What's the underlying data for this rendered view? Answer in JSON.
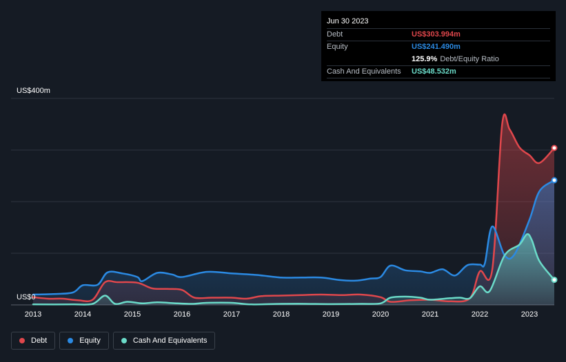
{
  "chart_data": {
    "type": "area",
    "y_top_label": "US$400m",
    "y_zero_label": "US$0",
    "ylim": [
      0,
      400
    ],
    "xlim": [
      2013.0,
      2023.5
    ],
    "x_ticks": [
      "2013",
      "2014",
      "2015",
      "2016",
      "2017",
      "2018",
      "2019",
      "2020",
      "2021",
      "2022",
      "2023"
    ],
    "series": [
      {
        "name": "Debt",
        "color": "#e0474c",
        "points": [
          [
            2013.0,
            15
          ],
          [
            2013.3,
            12
          ],
          [
            2013.6,
            12
          ],
          [
            2013.9,
            9
          ],
          [
            2014.2,
            10
          ],
          [
            2014.45,
            44
          ],
          [
            2014.7,
            44
          ],
          [
            2015.1,
            43
          ],
          [
            2015.4,
            32
          ],
          [
            2015.7,
            31
          ],
          [
            2016.0,
            29
          ],
          [
            2016.25,
            14
          ],
          [
            2016.6,
            14
          ],
          [
            2017.0,
            14
          ],
          [
            2017.3,
            12
          ],
          [
            2017.6,
            17
          ],
          [
            2018.0,
            18
          ],
          [
            2018.4,
            19
          ],
          [
            2018.8,
            20
          ],
          [
            2019.2,
            19
          ],
          [
            2019.6,
            20
          ],
          [
            2020.0,
            15
          ],
          [
            2020.2,
            6
          ],
          [
            2020.6,
            9
          ],
          [
            2021.0,
            10
          ],
          [
            2021.4,
            7
          ],
          [
            2021.8,
            13
          ],
          [
            2022.0,
            65
          ],
          [
            2022.25,
            68
          ],
          [
            2022.45,
            350
          ],
          [
            2022.6,
            340
          ],
          [
            2022.8,
            305
          ],
          [
            2023.0,
            290
          ],
          [
            2023.2,
            275
          ],
          [
            2023.5,
            303.994
          ]
        ]
      },
      {
        "name": "Equity",
        "color": "#2b8ae3",
        "points": [
          [
            2013.0,
            20
          ],
          [
            2013.4,
            21
          ],
          [
            2013.8,
            24
          ],
          [
            2014.0,
            38
          ],
          [
            2014.3,
            39
          ],
          [
            2014.5,
            63
          ],
          [
            2014.8,
            61
          ],
          [
            2015.1,
            54
          ],
          [
            2015.2,
            46
          ],
          [
            2015.5,
            62
          ],
          [
            2015.8,
            59
          ],
          [
            2016.0,
            54
          ],
          [
            2016.5,
            64
          ],
          [
            2017.0,
            61
          ],
          [
            2017.5,
            58
          ],
          [
            2018.0,
            53
          ],
          [
            2018.4,
            53
          ],
          [
            2018.8,
            53
          ],
          [
            2019.2,
            48
          ],
          [
            2019.5,
            47
          ],
          [
            2019.8,
            51
          ],
          [
            2020.0,
            54
          ],
          [
            2020.2,
            76
          ],
          [
            2020.5,
            67
          ],
          [
            2020.8,
            65
          ],
          [
            2021.0,
            62
          ],
          [
            2021.25,
            69
          ],
          [
            2021.5,
            57
          ],
          [
            2021.75,
            77
          ],
          [
            2022.0,
            78
          ],
          [
            2022.1,
            80
          ],
          [
            2022.25,
            152
          ],
          [
            2022.5,
            96
          ],
          [
            2022.7,
            98
          ],
          [
            2023.0,
            165
          ],
          [
            2023.2,
            220
          ],
          [
            2023.5,
            241.49
          ]
        ]
      },
      {
        "name": "Cash And Equivalents",
        "color": "#6bdbc9",
        "points": [
          [
            2013.0,
            1
          ],
          [
            2013.8,
            1
          ],
          [
            2014.2,
            2
          ],
          [
            2014.45,
            18
          ],
          [
            2014.65,
            2
          ],
          [
            2014.9,
            6
          ],
          [
            2015.2,
            3
          ],
          [
            2015.5,
            5
          ],
          [
            2015.9,
            3
          ],
          [
            2016.2,
            2
          ],
          [
            2016.5,
            4
          ],
          [
            2017.0,
            4
          ],
          [
            2017.4,
            1
          ],
          [
            2018.0,
            2
          ],
          [
            2018.5,
            2
          ],
          [
            2019.0,
            1.5
          ],
          [
            2019.6,
            2
          ],
          [
            2020.0,
            3
          ],
          [
            2020.2,
            14
          ],
          [
            2020.5,
            16
          ],
          [
            2020.8,
            14
          ],
          [
            2021.0,
            10
          ],
          [
            2021.4,
            13
          ],
          [
            2021.6,
            14
          ],
          [
            2021.8,
            13
          ],
          [
            2022.0,
            36
          ],
          [
            2022.2,
            27
          ],
          [
            2022.5,
            96
          ],
          [
            2022.8,
            117
          ],
          [
            2022.95,
            137
          ],
          [
            2023.05,
            125
          ],
          [
            2023.2,
            85
          ],
          [
            2023.5,
            48.532
          ]
        ]
      }
    ]
  },
  "tooltip": {
    "date": "Jun 30 2023",
    "debt_label": "Debt",
    "debt_value": "US$303.994m",
    "equity_label": "Equity",
    "equity_value": "US$241.490m",
    "ratio_value": "125.9%",
    "ratio_suffix": "Debt/Equity Ratio",
    "cash_label": "Cash And Equivalents",
    "cash_value": "US$48.532m"
  },
  "legend": {
    "debt": "Debt",
    "equity": "Equity",
    "cash": "Cash And Equivalents"
  },
  "colors": {
    "debt": "#e0474c",
    "equity": "#2b8ae3",
    "cash": "#6bdbc9",
    "background": "#151b24"
  }
}
